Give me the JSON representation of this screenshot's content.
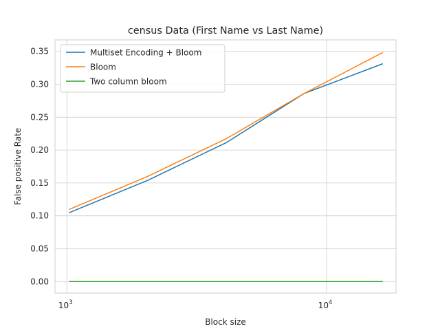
{
  "chart_data": {
    "type": "line",
    "title": "census Data (First Name vs Last Name)",
    "xlabel": "Block size",
    "ylabel": "False positive Rate",
    "xscale": "log",
    "xlim": [
      900,
      18500
    ],
    "ylim": [
      -0.0175,
      0.3675
    ],
    "grid": true,
    "legend_position": "top-left",
    "x": [
      1024,
      2048,
      4096,
      8192,
      16384
    ],
    "series": [
      {
        "name": "Multiset Encoding + Bloom",
        "color": "#1f77b4",
        "values": [
          0.105,
          0.154,
          0.211,
          0.286,
          0.331
        ]
      },
      {
        "name": "Bloom",
        "color": "#ff7f0e",
        "values": [
          0.11,
          0.16,
          0.217,
          0.286,
          0.348
        ]
      },
      {
        "name": "Two column bloom",
        "color": "#2ca02c",
        "values": [
          0.0,
          0.0,
          0.0,
          0.0,
          0.0
        ]
      }
    ],
    "y_ticks": [
      "0.00",
      "0.05",
      "0.10",
      "0.15",
      "0.20",
      "0.25",
      "0.30",
      "0.35"
    ],
    "x_ticks": [
      {
        "value": 1000,
        "base": "10",
        "exp": "3"
      },
      {
        "value": 10000,
        "base": "10",
        "exp": "4"
      }
    ]
  }
}
